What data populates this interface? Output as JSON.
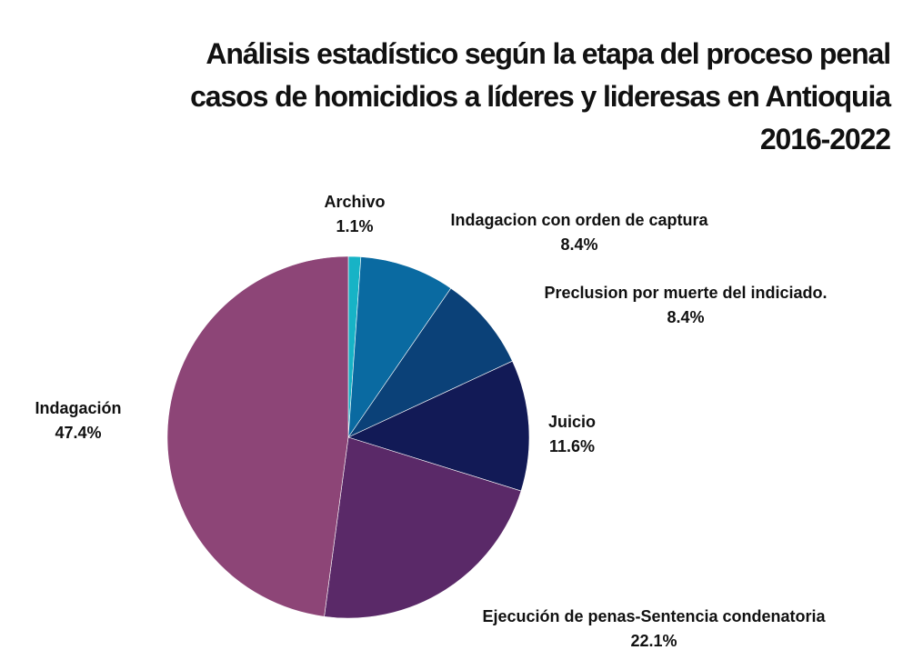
{
  "chart_data": {
    "type": "pie",
    "title": [
      "Análisis estadístico según la etapa del proceso penal",
      "casos de homicidios a líderes y lideresas en Antioquia",
      "2016-2022"
    ],
    "slices": [
      {
        "label": "Archivo",
        "value": 1.1,
        "value_label": "1.1%",
        "color": "#17b3c6"
      },
      {
        "label": "Indagacion con orden de captura",
        "value": 8.4,
        "value_label": "8.4%",
        "color": "#0a6aa1"
      },
      {
        "label": "Preclusion por muerte del indiciado.",
        "value": 8.4,
        "value_label": "8.4%",
        "color": "#0b4178"
      },
      {
        "label": "Juicio",
        "value": 11.6,
        "value_label": "11.6%",
        "color": "#121a56"
      },
      {
        "label": "Ejecución de penas-Sentencia condenatoria",
        "value": 22.1,
        "value_label": "22.1%",
        "color": "#5a2968"
      },
      {
        "label": "Indagación",
        "value": 47.4,
        "value_label": "47.4%",
        "color": "#8d4577"
      }
    ]
  }
}
